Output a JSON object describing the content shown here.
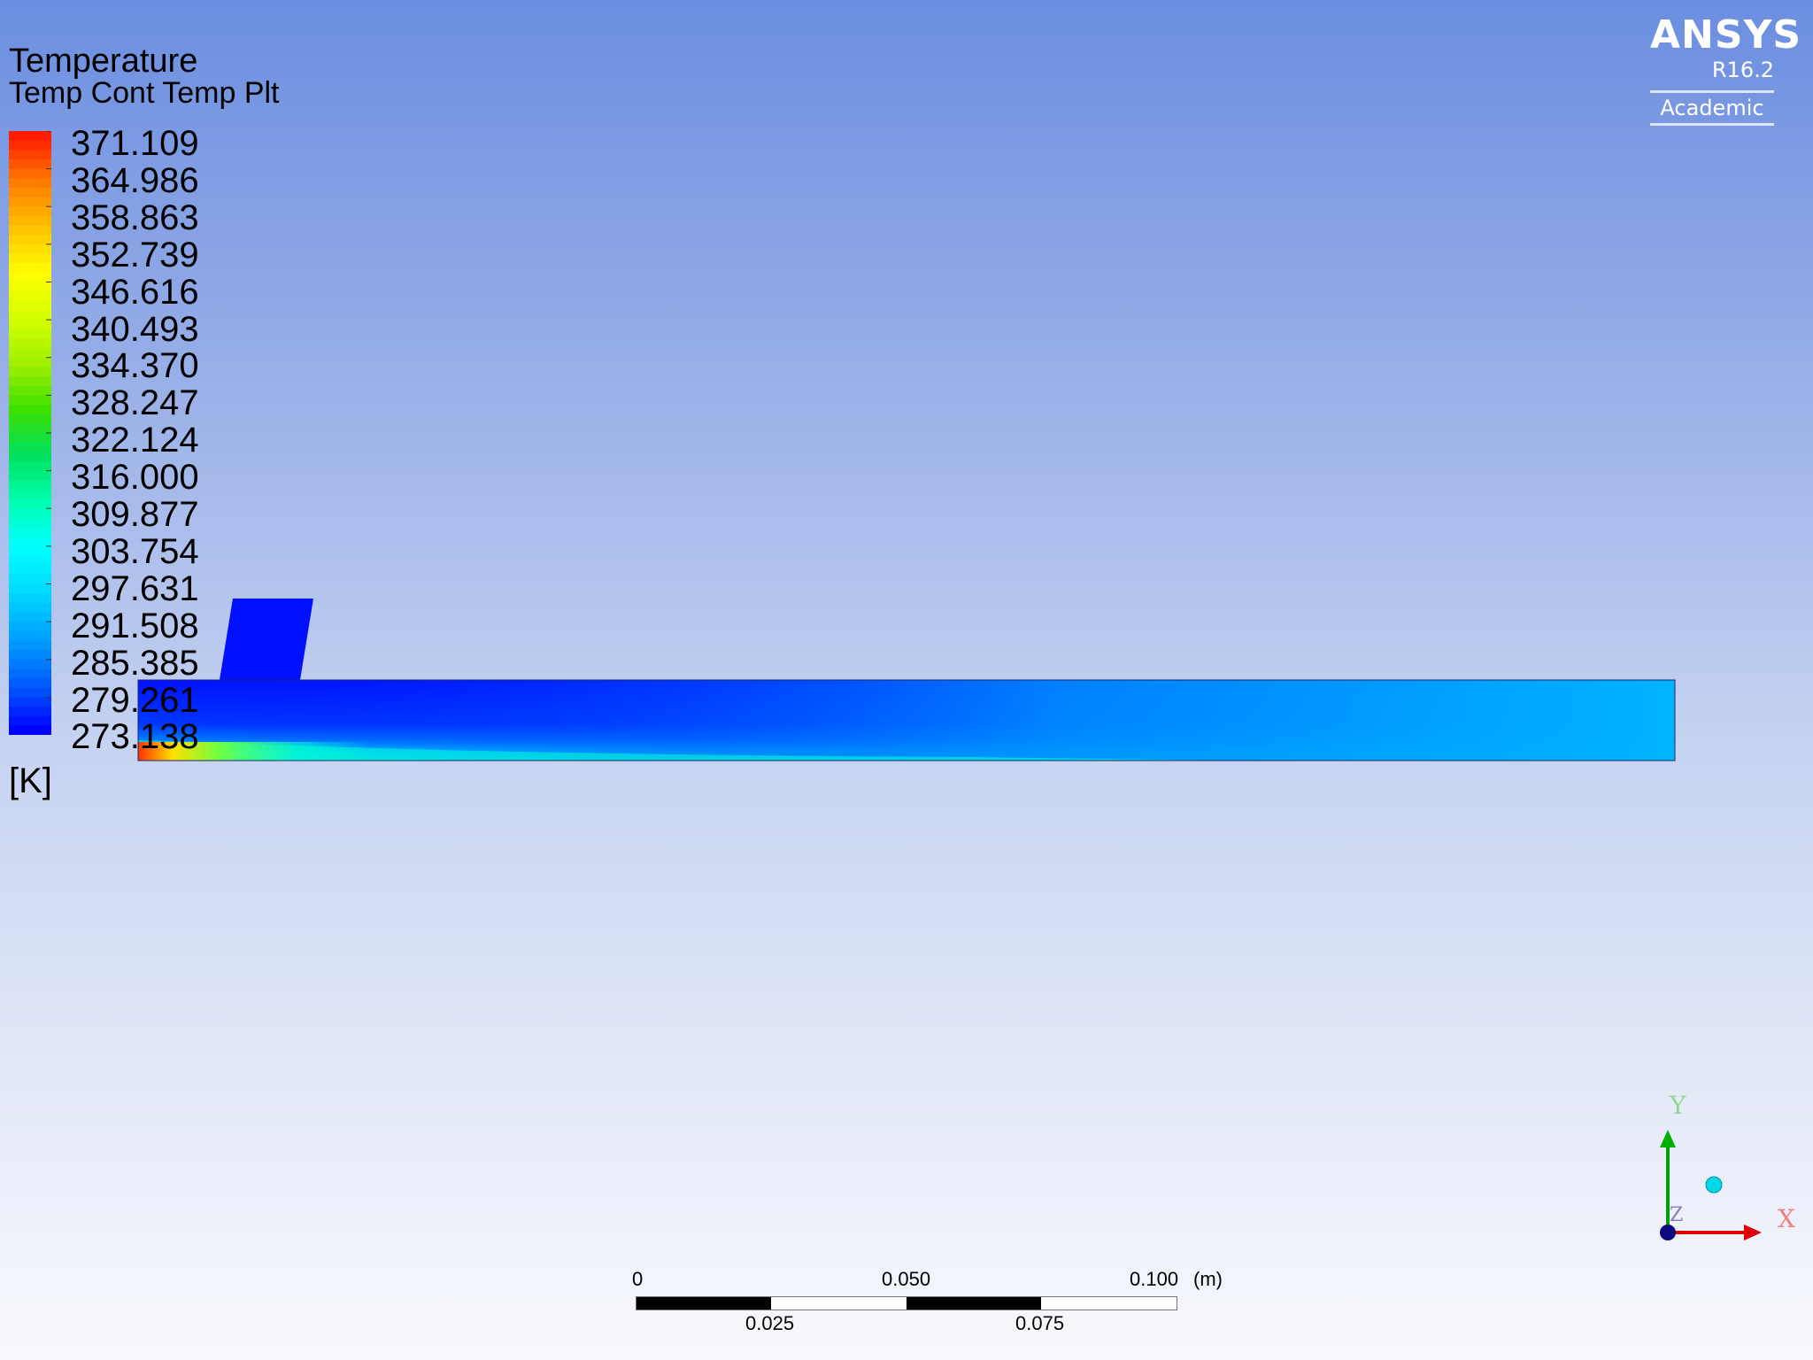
{
  "legend": {
    "title": "Temperature",
    "subtitle": "Temp Cont Temp Plt",
    "unit": "[K]",
    "values": [
      "371.109",
      "364.986",
      "358.863",
      "352.739",
      "346.616",
      "340.493",
      "334.370",
      "328.247",
      "322.124",
      "316.000",
      "309.877",
      "303.754",
      "297.631",
      "291.508",
      "285.385",
      "279.261",
      "273.138"
    ],
    "colormap": [
      "#ff1a00",
      "#ff7a00",
      "#ffc000",
      "#ffff00",
      "#d4ff00",
      "#9fef00",
      "#3ce000",
      "#00e060",
      "#00ffb0",
      "#00ffff",
      "#00d8ff",
      "#009fff",
      "#005cff",
      "#0000ff"
    ]
  },
  "logo": {
    "brand": "ANSYS",
    "version": "R16.2",
    "edition": "Academic"
  },
  "scale_bar": {
    "top_labels": [
      "0",
      "0.050",
      "0.100"
    ],
    "bottom_labels": [
      "0.025",
      "0.075"
    ],
    "unit": "(m)"
  },
  "triad": {
    "x_label": "X",
    "y_label": "Y",
    "z_label": "Z"
  }
}
